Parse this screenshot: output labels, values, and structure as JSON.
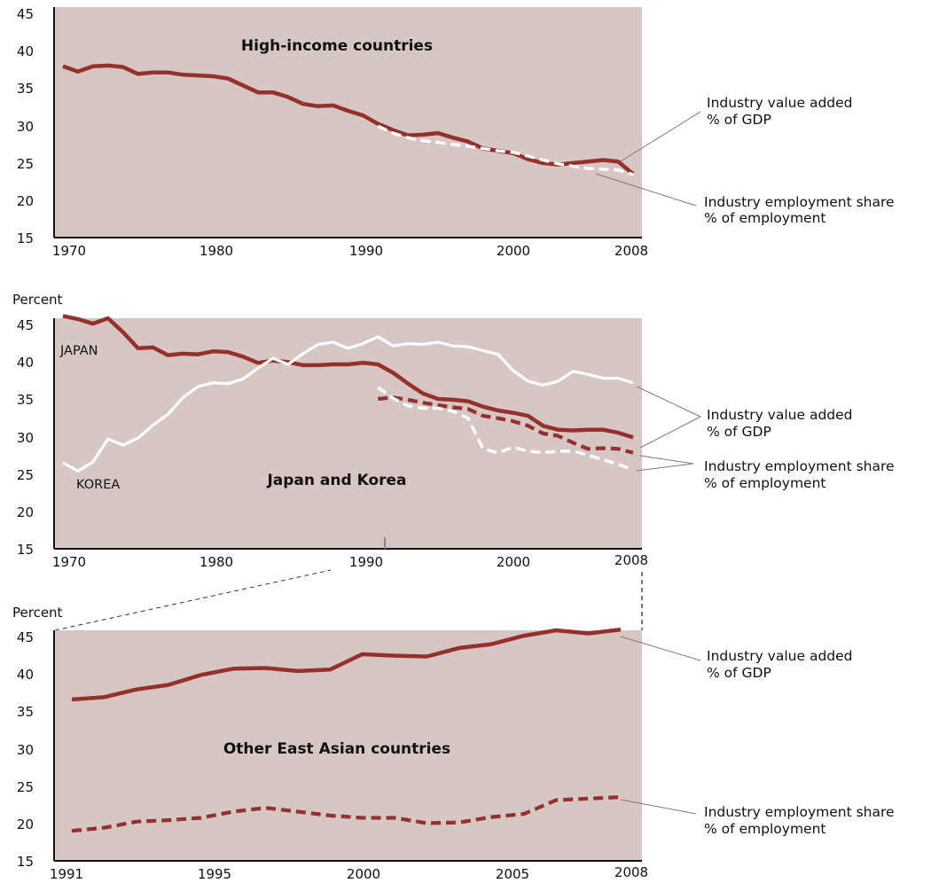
{
  "colors": {
    "panel_bg": "#d6c7c5",
    "maroon": "#96302d",
    "white_line": "#ffffff",
    "axis": "#111111",
    "leader": "#7a7a7a"
  },
  "chart_data": [
    {
      "type": "line",
      "title": "High-income countries",
      "ylabel": "",
      "xlim": [
        1970,
        2008
      ],
      "ylim": [
        15,
        45
      ],
      "y_ticks": [
        "45",
        "40",
        "35",
        "30",
        "25",
        "20",
        "15"
      ],
      "x_ticks": [
        "1970",
        "1980",
        "1990",
        "2000",
        "2008"
      ],
      "annotations": [
        {
          "line1": "Industry value added",
          "line2": "% of GDP"
        },
        {
          "line1": "Industry employment share",
          "line2": "% of employment"
        }
      ],
      "series": [
        {
          "style": "solid-maroon",
          "x": [
            1970,
            1971,
            1972,
            1973,
            1974,
            1975,
            1976,
            1977,
            1978,
            1979,
            1980,
            1981,
            1982,
            1983,
            1984,
            1985,
            1986,
            1987,
            1988,
            1989,
            1990,
            1991,
            1992,
            1993,
            1994,
            1995,
            1996,
            1997,
            1998,
            1999,
            2000,
            2001,
            2002,
            2003,
            2004,
            2005,
            2006,
            2007,
            2008
          ],
          "y": [
            37.3,
            36.6,
            37.3,
            37.4,
            37.2,
            36.3,
            36.5,
            36.5,
            36.2,
            36.1,
            36.0,
            35.7,
            34.8,
            33.9,
            33.9,
            33.3,
            32.4,
            32.1,
            32.2,
            31.5,
            30.9,
            29.8,
            29.0,
            28.3,
            28.4,
            28.6,
            28.0,
            27.5,
            26.6,
            26.3,
            26.0,
            25.2,
            24.7,
            24.5,
            24.7,
            24.9,
            25.1,
            24.9,
            23.3
          ]
        },
        {
          "style": "dashed-white",
          "x": [
            1991,
            1992,
            1993,
            1994,
            1995,
            1996,
            1997,
            1998,
            1999,
            2000,
            2001,
            2002,
            2003,
            2004,
            2005,
            2006,
            2007,
            2008
          ],
          "y": [
            29.5,
            28.6,
            28.0,
            27.6,
            27.4,
            27.1,
            26.9,
            26.6,
            26.3,
            26.1,
            25.6,
            25.1,
            24.6,
            24.3,
            24.0,
            23.9,
            23.8,
            23.2
          ]
        }
      ]
    },
    {
      "type": "line",
      "title": "Japan and Korea",
      "ylabel": "Percent",
      "xlim": [
        1970,
        2008
      ],
      "ylim": [
        15,
        45
      ],
      "y_ticks": [
        "45",
        "40",
        "35",
        "30",
        "25",
        "20",
        "15"
      ],
      "x_ticks": [
        "1970",
        "1980",
        "1990",
        "2000",
        "2008"
      ],
      "country_labels": [
        "JAPAN",
        "KOREA"
      ],
      "annotations": [
        {
          "line1": "Industry value added",
          "line2": "% of GDP"
        },
        {
          "line1": "Industry employment share",
          "line2": "% of employment"
        }
      ],
      "series": [
        {
          "name": "JAPAN",
          "style": "solid-maroon",
          "x": [
            1970,
            1971,
            1972,
            1973,
            1974,
            1975,
            1976,
            1977,
            1978,
            1979,
            1980,
            1981,
            1982,
            1983,
            1984,
            1985,
            1986,
            1987,
            1988,
            1989,
            1990,
            1991,
            1992,
            1993,
            1994,
            1995,
            1996,
            1997,
            1998,
            1999,
            2000,
            2001,
            2002,
            2003,
            2004,
            2005,
            2006,
            2007,
            2008
          ],
          "y": [
            45.3,
            44.9,
            44.3,
            45.0,
            43.2,
            41.1,
            41.2,
            40.2,
            40.4,
            40.3,
            40.7,
            40.6,
            40.0,
            39.2,
            39.5,
            39.3,
            38.9,
            38.9,
            39.0,
            39.0,
            39.2,
            39.0,
            37.9,
            36.5,
            35.2,
            34.5,
            34.4,
            34.2,
            33.5,
            33.0,
            32.7,
            32.3,
            31.0,
            30.5,
            30.4,
            30.5,
            30.5,
            30.1,
            29.5
          ]
        },
        {
          "name": "KOREA",
          "style": "solid-white",
          "x": [
            1970,
            1971,
            1972,
            1973,
            1974,
            1975,
            1976,
            1977,
            1978,
            1979,
            1980,
            1981,
            1982,
            1983,
            1984,
            1985,
            1986,
            1987,
            1988,
            1989,
            1990,
            1991,
            1992,
            1993,
            1994,
            1995,
            1996,
            1997,
            1998,
            1999,
            2000,
            2001,
            2002,
            2003,
            2004,
            2005,
            2006,
            2007,
            2008
          ],
          "y": [
            26.2,
            25.1,
            26.3,
            29.3,
            28.5,
            29.4,
            31.1,
            32.5,
            34.7,
            36.1,
            36.6,
            36.5,
            37.1,
            38.5,
            39.8,
            39.0,
            40.4,
            41.6,
            41.9,
            41.1,
            41.7,
            42.6,
            41.4,
            41.7,
            41.6,
            41.9,
            41.4,
            41.3,
            40.8,
            40.3,
            38.2,
            36.8,
            36.3,
            36.8,
            38.1,
            37.7,
            37.2,
            37.2,
            36.6
          ]
        },
        {
          "name": "JAPAN",
          "style": "dashed-maroon",
          "x": [
            1991,
            1992,
            1993,
            1994,
            1995,
            1996,
            1997,
            1998,
            1999,
            2000,
            2001,
            2002,
            2003,
            2004,
            2005,
            2006,
            2007,
            2008
          ],
          "y": [
            34.5,
            34.7,
            34.4,
            34.0,
            33.7,
            33.4,
            33.2,
            32.3,
            32.0,
            31.6,
            31.0,
            30.0,
            29.7,
            28.8,
            28.0,
            28.1,
            28.0,
            27.5
          ]
        },
        {
          "name": "KOREA",
          "style": "dashed-white",
          "x": [
            1991,
            1992,
            1993,
            1994,
            1995,
            1996,
            1997,
            1998,
            1999,
            2000,
            2001,
            2002,
            2003,
            2004,
            2005,
            2006,
            2007,
            2008
          ],
          "y": [
            36.0,
            34.6,
            33.6,
            33.3,
            33.3,
            32.9,
            32.0,
            28.0,
            27.5,
            28.2,
            27.7,
            27.5,
            27.7,
            27.7,
            27.2,
            26.6,
            26.0,
            25.3
          ]
        }
      ]
    },
    {
      "type": "line",
      "title": "Other East Asian countries",
      "ylabel": "Percent",
      "xlim": [
        1991,
        2008
      ],
      "ylim": [
        15,
        45
      ],
      "y_ticks": [
        "45",
        "40",
        "35",
        "30",
        "25",
        "20",
        "15"
      ],
      "x_ticks": [
        "1991",
        "1995",
        "2000",
        "2005",
        "2008"
      ],
      "annotations": [
        {
          "line1": "Industry value added",
          "line2": "% of GDP"
        },
        {
          "line1": "Industry employment share",
          "line2": "% of employment"
        }
      ],
      "series": [
        {
          "style": "solid-maroon",
          "x": [
            1991,
            1992,
            1993,
            1994,
            1995,
            1996,
            1997,
            1998,
            1999,
            2000,
            2001,
            2002,
            2003,
            2004,
            2005,
            2006,
            2007,
            2008
          ],
          "y": [
            36.0,
            36.3,
            37.3,
            37.9,
            39.2,
            40.0,
            40.1,
            39.7,
            39.9,
            41.9,
            41.7,
            41.6,
            42.7,
            43.2,
            44.3,
            45.0,
            44.6,
            45.1
          ]
        },
        {
          "style": "dashed-maroon",
          "x": [
            1991,
            1992,
            1993,
            1994,
            1995,
            1996,
            1997,
            1998,
            1999,
            2000,
            2001,
            2002,
            2003,
            2004,
            2005,
            2006,
            2007,
            2008
          ],
          "y": [
            18.9,
            19.3,
            20.1,
            20.3,
            20.6,
            21.4,
            21.9,
            21.4,
            20.9,
            20.6,
            20.6,
            19.9,
            20.0,
            20.7,
            21.1,
            22.9,
            23.1,
            23.3
          ]
        }
      ]
    }
  ]
}
